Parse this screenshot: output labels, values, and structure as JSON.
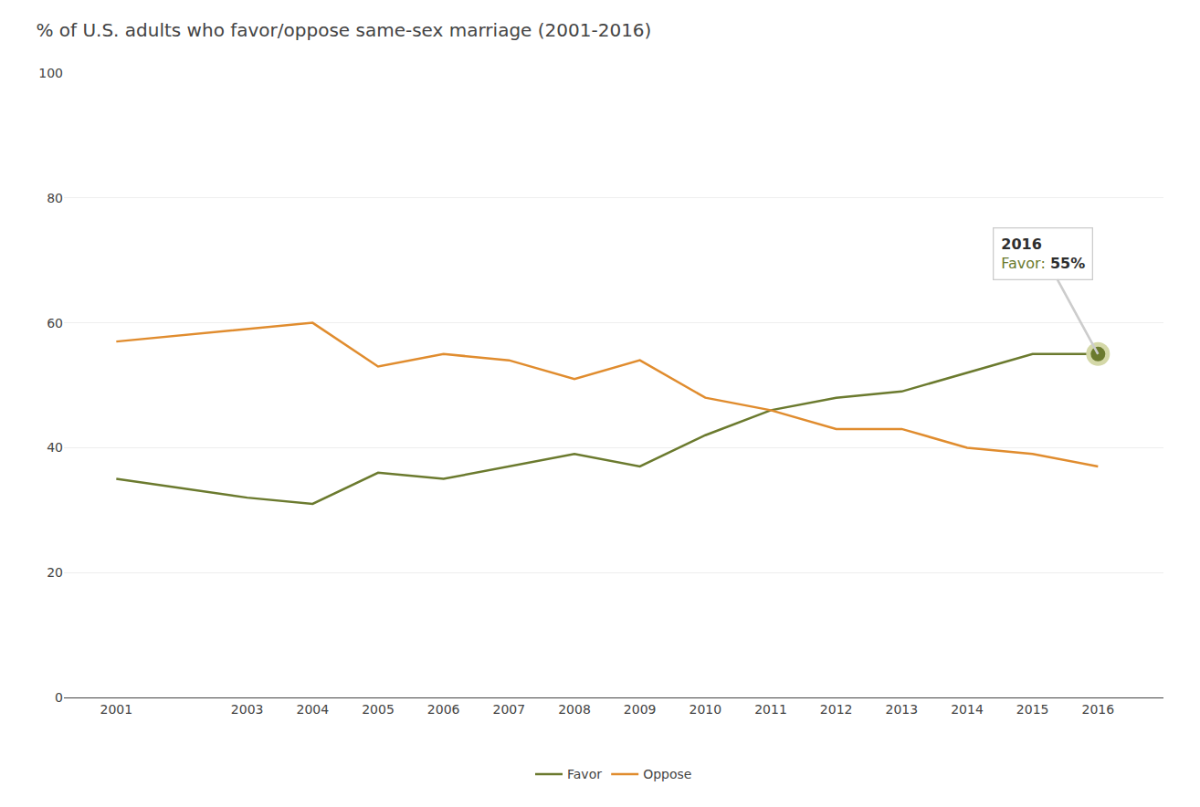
{
  "chart_data": {
    "type": "line",
    "title": "% of U.S. adults who favor/oppose same-sex marriage (2001-2016)",
    "x": [
      2001,
      2003,
      2004,
      2005,
      2006,
      2007,
      2008,
      2009,
      2010,
      2011,
      2012,
      2013,
      2014,
      2015,
      2016
    ],
    "series": [
      {
        "name": "Favor",
        "color": "#6b7a2e",
        "values": [
          35,
          32,
          31,
          36,
          35,
          37,
          39,
          37,
          42,
          46,
          48,
          49,
          52,
          55,
          55
        ]
      },
      {
        "name": "Oppose",
        "color": "#e08c2e",
        "values": [
          57,
          59,
          60,
          53,
          55,
          54,
          51,
          54,
          48,
          46,
          43,
          43,
          40,
          39,
          37
        ]
      }
    ],
    "xlim": [
      2000.2,
      2017.0
    ],
    "xticks": [
      2001,
      2003,
      2004,
      2005,
      2006,
      2007,
      2008,
      2009,
      2010,
      2011,
      2012,
      2013,
      2014,
      2015,
      2016
    ],
    "ylim": [
      0,
      100
    ],
    "yticks": [
      0,
      20,
      40,
      60,
      80,
      100
    ],
    "grid": true,
    "legend": "bottom",
    "annotation": {
      "x": 2016,
      "y": 55,
      "title": "2016",
      "text": "Favor:",
      "value_label": "55%",
      "color": "#d4d8a8"
    }
  }
}
